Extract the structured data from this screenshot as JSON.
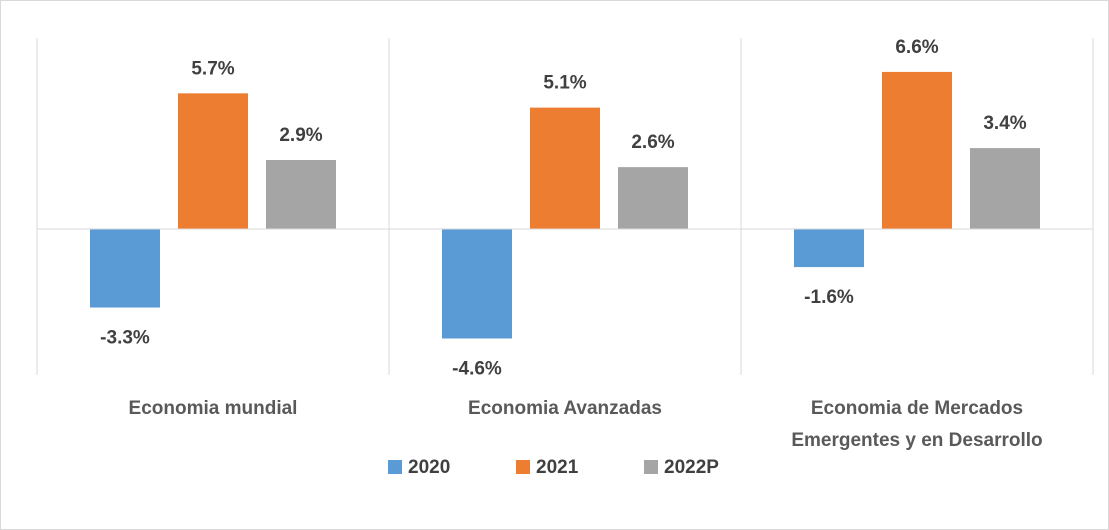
{
  "chart_data": {
    "type": "bar",
    "categories": [
      "Economia mundial",
      "Economia Avanzadas",
      "Economia de Mercados Emergentes y en Desarrollo"
    ],
    "series": [
      {
        "name": "2020",
        "color": "#5b9bd5",
        "values": [
          -3.3,
          -4.6,
          -1.6
        ],
        "value_labels": [
          "-3.3%",
          "-4.6%",
          "-1.6%"
        ]
      },
      {
        "name": "2021",
        "color": "#ed7d31",
        "values": [
          5.7,
          5.1,
          6.6
        ],
        "value_labels": [
          "5.7%",
          "5.1%",
          "6.6%"
        ]
      },
      {
        "name": "2022P",
        "color": "#a5a5a5",
        "values": [
          2.9,
          2.6,
          3.4
        ],
        "value_labels": [
          "2.9%",
          "2.6%",
          "3.4%"
        ]
      }
    ],
    "legend": "bottom"
  }
}
